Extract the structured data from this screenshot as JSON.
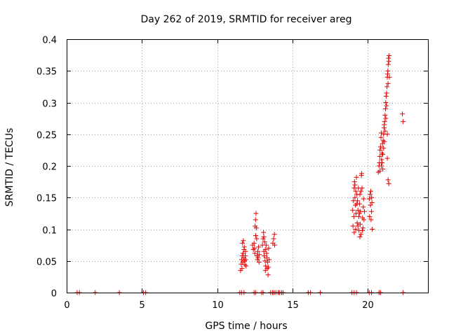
{
  "chart_data": {
    "type": "scatter",
    "title": "Day 262 of 2019, SRMTID for receiver areg",
    "xlabel": "GPS time / hours",
    "ylabel": "SRMTID / TECUs",
    "xlim": [
      0,
      24
    ],
    "ylim": [
      0,
      0.4
    ],
    "xticks": [
      0,
      5,
      10,
      15,
      20
    ],
    "xtick_labels": [
      "0",
      "5",
      "10",
      "15",
      "20"
    ],
    "yticks": [
      0,
      0.05,
      0.1,
      0.15,
      0.2,
      0.25,
      0.3,
      0.35,
      0.4
    ],
    "ytick_labels": [
      "0",
      "0.05",
      "0.1",
      "0.15",
      "0.2",
      "0.25",
      "0.3",
      "0.35",
      "0.4"
    ],
    "grid": true,
    "marker": "+",
    "series": [
      {
        "name": "SRMTID",
        "color": "#e00000",
        "points": [
          [
            0.7,
            0
          ],
          [
            0.85,
            0
          ],
          [
            1.9,
            0
          ],
          [
            3.5,
            0
          ],
          [
            5.1,
            0
          ],
          [
            5.25,
            0
          ],
          [
            11.5,
            0
          ],
          [
            11.62,
            0
          ],
          [
            11.78,
            0
          ],
          [
            12.45,
            0
          ],
          [
            12.55,
            0
          ],
          [
            12.95,
            0
          ],
          [
            13.05,
            0
          ],
          [
            13.55,
            0
          ],
          [
            13.68,
            0
          ],
          [
            13.78,
            0
          ],
          [
            13.9,
            0
          ],
          [
            14.05,
            0
          ],
          [
            14.15,
            0
          ],
          [
            14.28,
            0
          ],
          [
            14.38,
            0
          ],
          [
            16.05,
            0
          ],
          [
            16.2,
            0
          ],
          [
            16.85,
            0
          ],
          [
            18.95,
            0
          ],
          [
            19.1,
            0
          ],
          [
            19.25,
            0
          ],
          [
            20.1,
            0
          ],
          [
            20.25,
            0
          ],
          [
            20.75,
            0
          ],
          [
            20.85,
            0
          ],
          [
            22.35,
            0
          ],
          [
            11.55,
            0.035
          ],
          [
            11.6,
            0.045
          ],
          [
            11.62,
            0.052
          ],
          [
            11.66,
            0.058
          ],
          [
            11.7,
            0.048
          ],
          [
            11.72,
            0.062
          ],
          [
            11.75,
            0.055
          ],
          [
            11.78,
            0.068
          ],
          [
            11.8,
            0.072
          ],
          [
            11.82,
            0.05
          ],
          [
            11.84,
            0.044
          ],
          [
            11.86,
            0.058
          ],
          [
            11.88,
            0.065
          ],
          [
            11.9,
            0.052
          ],
          [
            11.68,
            0.078
          ],
          [
            11.74,
            0.082
          ],
          [
            11.92,
            0.042
          ],
          [
            11.65,
            0.038
          ],
          [
            12.35,
            0.075
          ],
          [
            12.4,
            0.068
          ],
          [
            12.45,
            0.078
          ],
          [
            12.5,
            0.062
          ],
          [
            12.52,
            0.105
          ],
          [
            12.55,
            0.115
          ],
          [
            12.58,
            0.125
          ],
          [
            12.6,
            0.102
          ],
          [
            12.62,
            0.085
          ],
          [
            12.65,
            0.058
          ],
          [
            12.68,
            0.052
          ],
          [
            12.7,
            0.065
          ],
          [
            12.72,
            0.055
          ],
          [
            12.75,
            0.072
          ],
          [
            12.78,
            0.048
          ],
          [
            12.8,
            0.06
          ],
          [
            12.48,
            0.07
          ],
          [
            12.56,
            0.09
          ],
          [
            13.0,
            0.075
          ],
          [
            13.05,
            0.085
          ],
          [
            13.08,
            0.095
          ],
          [
            13.1,
            0.065
          ],
          [
            13.12,
            0.058
          ],
          [
            13.15,
            0.08
          ],
          [
            13.18,
            0.05
          ],
          [
            13.2,
            0.068
          ],
          [
            13.22,
            0.042
          ],
          [
            13.25,
            0.075
          ],
          [
            13.28,
            0.062
          ],
          [
            13.3,
            0.055
          ],
          [
            13.32,
            0.038
          ],
          [
            13.35,
            0.048
          ],
          [
            13.38,
            0.028
          ],
          [
            13.4,
            0.04
          ],
          [
            13.42,
            0.07
          ],
          [
            13.45,
            0.052
          ],
          [
            13.1,
            0.088
          ],
          [
            13.2,
            0.035
          ],
          [
            13.7,
            0.078
          ],
          [
            13.75,
            0.085
          ],
          [
            13.8,
            0.092
          ],
          [
            13.82,
            0.075
          ],
          [
            19.0,
            0.13
          ],
          [
            19.02,
            0.105
          ],
          [
            19.05,
            0.145
          ],
          [
            19.08,
            0.12
          ],
          [
            19.1,
            0.165
          ],
          [
            19.12,
            0.175
          ],
          [
            19.15,
            0.15
          ],
          [
            19.18,
            0.138
          ],
          [
            19.2,
            0.16
          ],
          [
            19.22,
            0.125
          ],
          [
            19.25,
            0.182
          ],
          [
            19.28,
            0.155
          ],
          [
            19.3,
            0.11
          ],
          [
            19.32,
            0.145
          ],
          [
            19.35,
            0.13
          ],
          [
            19.38,
            0.165
          ],
          [
            19.4,
            0.12
          ],
          [
            19.42,
            0.098
          ],
          [
            19.45,
            0.14
          ],
          [
            19.48,
            0.155
          ],
          [
            19.5,
            0.108
          ],
          [
            19.52,
            0.128
          ],
          [
            19.55,
            0.092
          ],
          [
            19.58,
            0.185
          ],
          [
            19.6,
            0.188
          ],
          [
            19.62,
            0.165
          ],
          [
            19.65,
            0.118
          ],
          [
            19.68,
            0.102
          ],
          [
            19.7,
            0.135
          ],
          [
            19.72,
            0.148
          ],
          [
            19.75,
            0.115
          ],
          [
            19.78,
            0.128
          ],
          [
            19.1,
            0.095
          ],
          [
            19.2,
            0.1
          ],
          [
            19.15,
            0.17
          ],
          [
            19.28,
            0.14
          ],
          [
            19.45,
            0.125
          ],
          [
            19.55,
            0.16
          ],
          [
            19.35,
            0.105
          ],
          [
            19.65,
            0.098
          ],
          [
            19.48,
            0.088
          ],
          [
            20.1,
            0.148
          ],
          [
            20.15,
            0.155
          ],
          [
            20.2,
            0.16
          ],
          [
            20.22,
            0.115
          ],
          [
            20.25,
            0.128
          ],
          [
            20.28,
            0.142
          ],
          [
            20.3,
            0.1
          ],
          [
            20.18,
            0.138
          ],
          [
            20.12,
            0.12
          ],
          [
            20.26,
            0.15
          ],
          [
            20.7,
            0.19
          ],
          [
            20.75,
            0.2
          ],
          [
            20.78,
            0.205
          ],
          [
            20.8,
            0.215
          ],
          [
            20.82,
            0.225
          ],
          [
            20.85,
            0.23
          ],
          [
            20.88,
            0.245
          ],
          [
            20.9,
            0.252
          ],
          [
            20.92,
            0.21
          ],
          [
            20.95,
            0.22
          ],
          [
            20.98,
            0.235
          ],
          [
            21.0,
            0.195
          ],
          [
            21.02,
            0.24
          ],
          [
            21.05,
            0.25
          ],
          [
            21.08,
            0.26
          ],
          [
            21.1,
            0.265
          ],
          [
            21.12,
            0.27
          ],
          [
            21.15,
            0.28
          ],
          [
            21.18,
            0.29
          ],
          [
            21.2,
            0.3
          ],
          [
            21.22,
            0.31
          ],
          [
            21.25,
            0.315
          ],
          [
            21.28,
            0.325
          ],
          [
            21.3,
            0.34
          ],
          [
            21.32,
            0.345
          ],
          [
            21.34,
            0.35
          ],
          [
            21.36,
            0.36
          ],
          [
            21.38,
            0.37
          ],
          [
            21.4,
            0.365
          ],
          [
            21.42,
            0.374
          ],
          [
            21.44,
            0.34
          ],
          [
            21.35,
            0.33
          ],
          [
            21.25,
            0.295
          ],
          [
            21.2,
            0.275
          ],
          [
            21.15,
            0.255
          ],
          [
            21.1,
            0.238
          ],
          [
            21.05,
            0.228
          ],
          [
            21.0,
            0.218
          ],
          [
            20.95,
            0.205
          ],
          [
            21.3,
            0.212
          ],
          [
            21.35,
            0.178
          ],
          [
            21.4,
            0.172
          ],
          [
            21.3,
            0.25
          ],
          [
            20.8,
            0.192
          ],
          [
            20.9,
            0.2
          ],
          [
            22.3,
            0.282
          ],
          [
            22.35,
            0.27
          ]
        ]
      }
    ]
  }
}
